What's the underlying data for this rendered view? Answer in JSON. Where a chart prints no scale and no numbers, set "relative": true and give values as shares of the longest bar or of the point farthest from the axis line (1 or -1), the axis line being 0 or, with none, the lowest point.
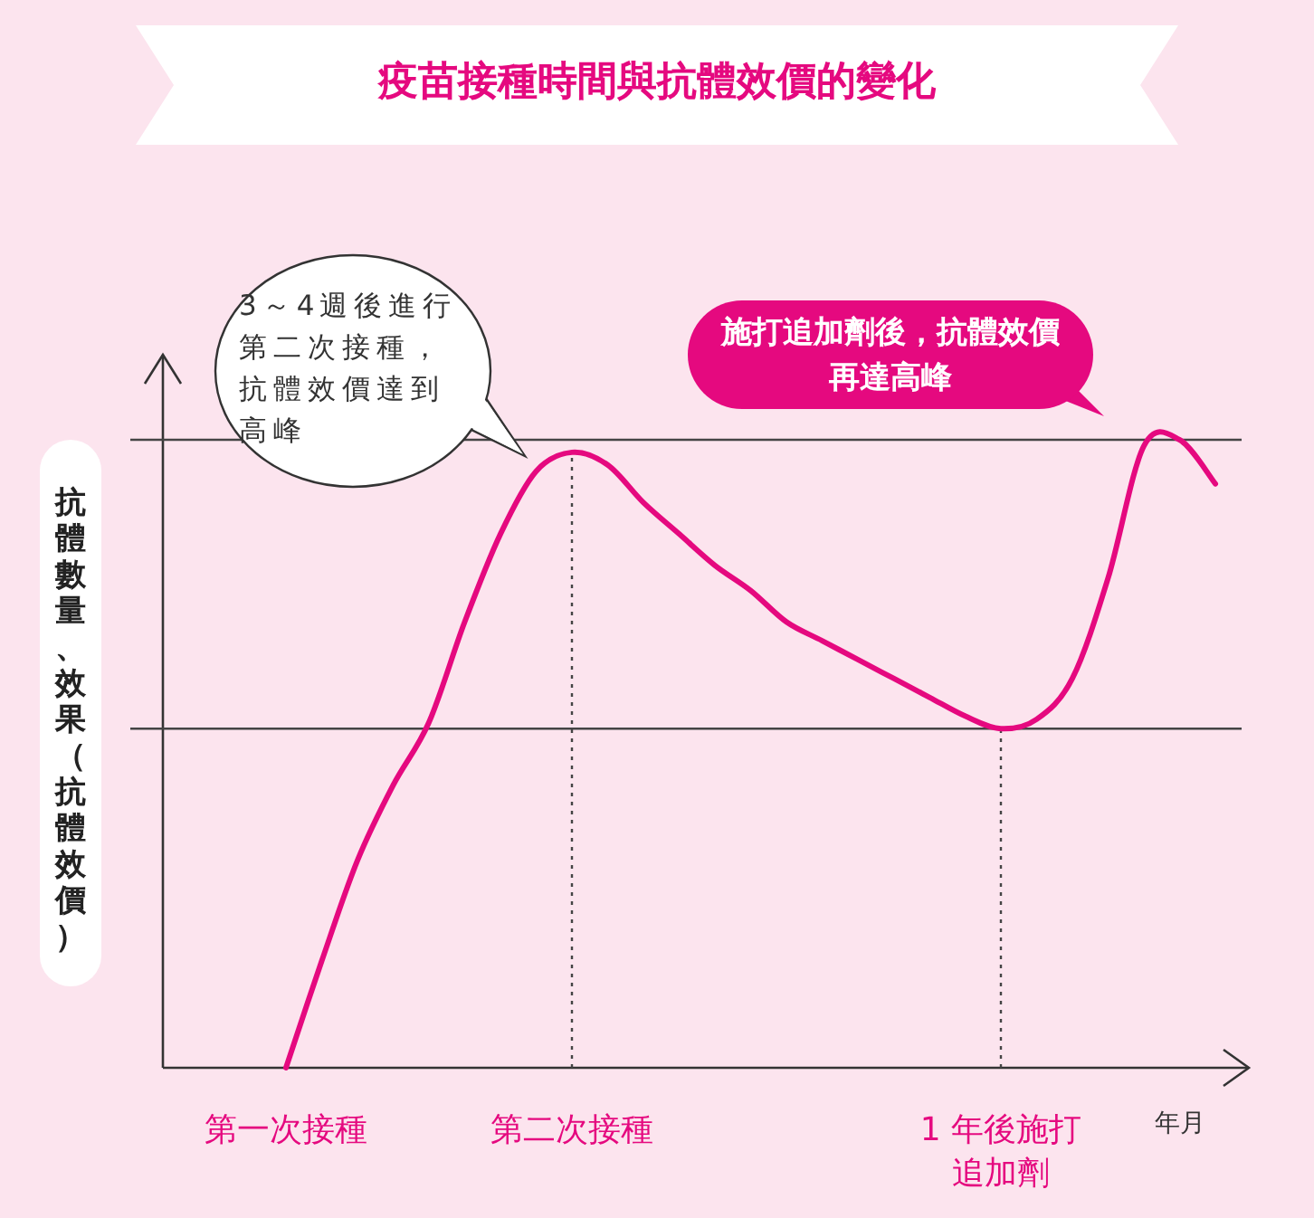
{
  "chart_data": {
    "type": "line",
    "title": "疫苗接種時間與抗體效價的變化",
    "xlabel": "年月",
    "ylabel": "抗體數量、效果（抗體效價）",
    "relative": true,
    "categories": [
      "第一次接種",
      null,
      null,
      null,
      null,
      null,
      null,
      null,
      "第二次接種",
      null,
      null,
      null,
      null,
      null,
      null,
      null,
      null,
      null,
      null,
      null,
      "1 年後施打追加劑",
      null,
      null,
      null,
      null,
      null,
      null
    ],
    "series": [
      {
        "color": "#e5097f",
        "values": [
          0,
          0.17,
          0.33,
          0.45,
          0.55,
          0.71,
          0.85,
          0.95,
          0.98,
          0.96,
          0.9,
          0.85,
          0.8,
          0.76,
          0.71,
          0.68,
          0.65,
          0.62,
          0.59,
          0.56,
          0.54,
          0.555,
          0.62,
          0.78,
          0.99,
          1,
          0.93
        ]
      }
    ],
    "ref_lines": [
      {
        "axis": "y",
        "value": 1.0,
        "line_style": "solid"
      },
      {
        "axis": "y",
        "value": 0.54,
        "line_style": "solid"
      },
      {
        "axis": "x",
        "value": "第二次接種",
        "line_style": "dotted"
      },
      {
        "axis": "x",
        "value": "1 年後施打追加劑",
        "line_style": "dotted"
      }
    ],
    "annotations": [
      "3～4週後進行第二次接種，抗體效價達到高峰",
      "施打追加劑後，抗體效價再達高峰"
    ]
  }
}
